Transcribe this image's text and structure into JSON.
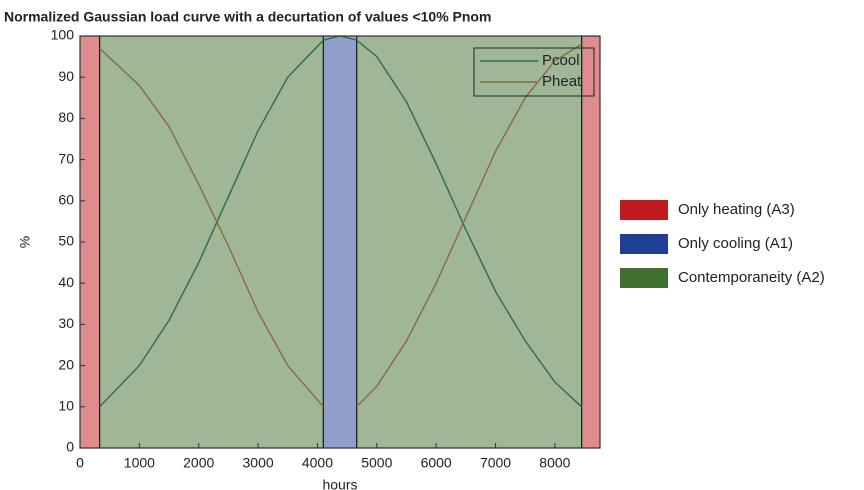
{
  "chart_data": {
    "type": "line",
    "title": "Normalized Gaussian load curve with a decurtation of values <10% Pnom",
    "xlabel": "hours",
    "ylabel": "%",
    "x": [
      330,
      1000,
      1500,
      2000,
      2500,
      3000,
      3500,
      4100,
      4380,
      4660,
      5000,
      5500,
      6000,
      6500,
      7000,
      7500,
      8000,
      8450
    ],
    "series": [
      {
        "name": "Pcool",
        "color": "#2e6b50",
        "values": [
          10,
          20,
          31,
          45,
          61,
          77,
          90,
          99,
          100,
          99,
          95,
          84,
          69,
          53,
          38,
          26,
          16,
          10
        ]
      },
      {
        "name": "Pheat",
        "color": "#8b6a3a",
        "values": [
          97,
          88,
          78,
          64,
          49,
          33,
          20,
          10,
          null,
          10,
          15,
          26,
          40,
          56,
          72,
          85,
          94,
          98
        ]
      }
    ],
    "areas": [
      {
        "name": "Only heating (A3)",
        "color": "#c0191e",
        "ranges": [
          [
            0,
            330
          ],
          [
            8450,
            8760
          ]
        ]
      },
      {
        "name": "Only cooling (A1)",
        "color": "#1f3f96",
        "ranges": [
          [
            4100,
            4660
          ]
        ]
      },
      {
        "name": "Contemporaneity (A2)",
        "color": "#3f7030",
        "ranges": [
          [
            330,
            4100
          ],
          [
            4660,
            8450
          ]
        ]
      }
    ],
    "xlim": [
      0,
      8760
    ],
    "ylim": [
      0,
      100
    ],
    "xticks": [
      0,
      1000,
      2000,
      3000,
      4000,
      5000,
      6000,
      7000,
      8000
    ],
    "yticks": [
      0,
      10,
      20,
      30,
      40,
      50,
      60,
      70,
      80,
      90,
      100
    ],
    "legend": "upper right"
  }
}
